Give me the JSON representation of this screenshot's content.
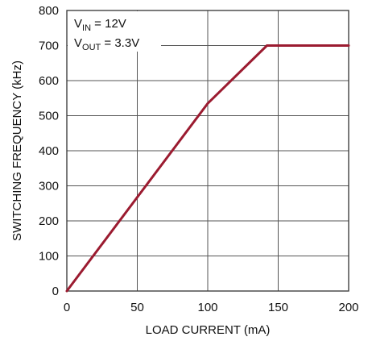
{
  "chart_data": {
    "type": "line",
    "xlabel": "LOAD CURRENT (mA)",
    "ylabel": "SWITCHING FREQUENCY (kHz)",
    "xlim": [
      0,
      200
    ],
    "ylim": [
      0,
      800
    ],
    "x_ticks": [
      "0",
      "50",
      "100",
      "150",
      "200"
    ],
    "y_ticks": [
      "0",
      "100",
      "200",
      "300",
      "400",
      "500",
      "600",
      "700",
      "800"
    ],
    "grid": true,
    "series": [
      {
        "color": "#9b1b30",
        "x": [
          0,
          100,
          142,
          200
        ],
        "y": [
          0,
          535,
          700,
          700
        ]
      }
    ],
    "annotation": {
      "line1": {
        "main": "V",
        "sub": "IN",
        "rest": " = 12V"
      },
      "line2": {
        "main": "V",
        "sub": "OUT",
        "rest": " = 3.3V"
      }
    }
  }
}
